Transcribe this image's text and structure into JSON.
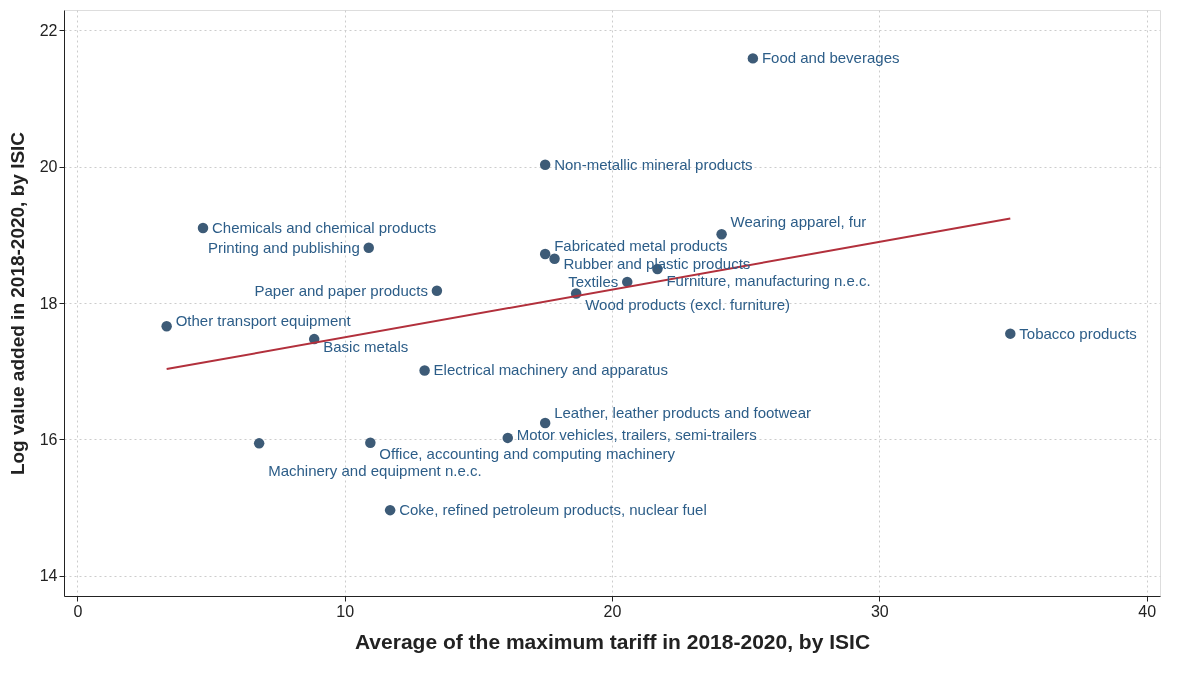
{
  "chart_data": {
    "type": "scatter",
    "xlabel": "Average of the maximum tariff in 2018-2020, by ISIC",
    "ylabel": "Log value added in 2018-2020, by ISIC",
    "xlim": [
      -0.5,
      40.5
    ],
    "ylim": [
      13.7,
      22.3
    ],
    "xticks": [
      0,
      10,
      20,
      30,
      40
    ],
    "yticks": [
      14,
      16,
      18,
      20,
      22
    ],
    "grid": true,
    "series": [
      {
        "marker": "circle",
        "color": "#3d5b77",
        "x": [
          25.27,
          17.5,
          4.7,
          10.9,
          24.1,
          17.5,
          17.85,
          21.7,
          20.57,
          13.45,
          18.66,
          3.34,
          8.86,
          34.9,
          12.99,
          17.5,
          6.8,
          10.96,
          16.1,
          11.7
        ],
        "values": [
          21.59,
          20.03,
          19.1,
          18.81,
          19.01,
          18.72,
          18.65,
          18.5,
          18.31,
          18.18,
          18.14,
          17.66,
          17.47,
          17.55,
          17.01,
          16.24,
          15.94,
          15.95,
          16.02,
          14.96
        ]
      },
      {
        "type": "line",
        "color": "#b2303c",
        "line_style": "solid",
        "x": [
          3.34,
          34.9
        ],
        "values": [
          17.03,
          19.24
        ]
      }
    ],
    "annotations": [
      {
        "text": "Food and beverages",
        "x": 25.27,
        "y": 21.59
      },
      {
        "text": "Non-metallic mineral products",
        "x": 17.5,
        "y": 20.03
      },
      {
        "text": "Chemicals and chemical products",
        "x": 4.7,
        "y": 19.1
      },
      {
        "text": "Printing and publishing",
        "x": 10.9,
        "y": 18.81
      },
      {
        "text": "Wearing apparel, fur",
        "x": 24.1,
        "y": 19.01
      },
      {
        "text": "Fabricated metal products",
        "x": 17.5,
        "y": 18.72
      },
      {
        "text": "Rubber and plastic products",
        "x": 17.85,
        "y": 18.65
      },
      {
        "text": "Furniture, manufacturing n.e.c.",
        "x": 21.7,
        "y": 18.5
      },
      {
        "text": "Textiles",
        "x": 20.57,
        "y": 18.31
      },
      {
        "text": "Paper and paper products",
        "x": 13.45,
        "y": 18.18
      },
      {
        "text": "Wood products (excl. furniture)",
        "x": 18.66,
        "y": 18.14
      },
      {
        "text": "Other transport equipment",
        "x": 3.34,
        "y": 17.66
      },
      {
        "text": "Basic metals",
        "x": 8.86,
        "y": 17.47
      },
      {
        "text": "Tobacco products",
        "x": 34.9,
        "y": 17.55
      },
      {
        "text": "Electrical machinery and apparatus",
        "x": 12.99,
        "y": 17.01
      },
      {
        "text": "Leather, leather products and footwear",
        "x": 17.5,
        "y": 16.24
      },
      {
        "text": "Machinery and equipment n.e.c.",
        "x": 6.8,
        "y": 15.94
      },
      {
        "text": "Office, accounting and computing machinery",
        "x": 10.96,
        "y": 15.95
      },
      {
        "text": "Motor vehicles, trailers, semi-trailers",
        "x": 16.1,
        "y": 16.02
      },
      {
        "text": "Coke, refined petroleum products, nuclear fuel",
        "x": 11.7,
        "y": 14.96
      }
    ]
  }
}
